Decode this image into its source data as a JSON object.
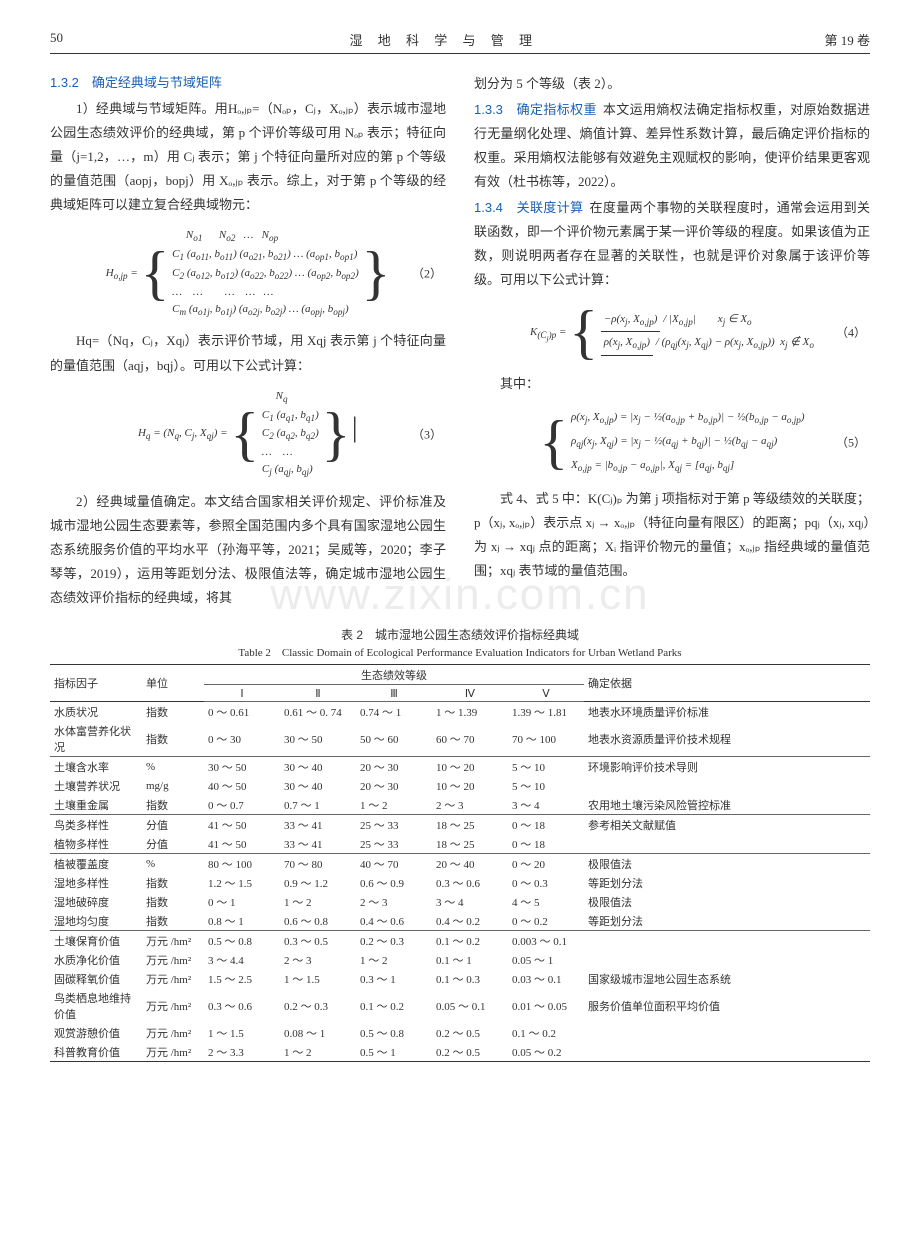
{
  "header": {
    "page": "50",
    "journal": "湿 地 科 学 与 管 理",
    "volume": "第 19 卷"
  },
  "watermark": "www.zixin.com.cn",
  "left": {
    "h132": "1.3.2　确定经典域与节域矩阵",
    "p1": "1）经典域与节域矩阵。用Hₒ,ⱼₚ=（Nₒₚ，Cⱼ，Xₒ,ⱼₚ）表示城市湿地公园生态绩效评价的经典域，第 p 个评价等级可用 Nₒₚ 表示；特征向量（j=1,2，…，m）用 Cⱼ 表示；第 j 个特征向量所对应的第 p 个等级的量值范围（aopj，bopj）用 Xₒ,ⱼₚ 表示。综上，对于第 p 个等级的经典域矩阵可以建立复合经典域物元：",
    "formula2_num": "（2）",
    "p2": "Hq=（Nq，Cⱼ，Xqⱼ）表示评价节域，用 Xqj 表示第 j 个特征向量的量值范围（aqj，bqj）。可用以下公式计算：",
    "formula3_num": "（3）",
    "p3": "2）经典域量值确定。本文结合国家相关评价规定、评价标准及城市湿地公园生态要素等，参照全国范围内多个具有国家湿地公园生态系统服务价值的平均水平（孙海平等，2021；吴威等，2020；李子琴等，2019），运用等距划分法、极限值法等，确定城市湿地公园生态绩效评价指标的经典域，将其"
  },
  "right": {
    "p0": "划分为 5 个等级（表 2）。",
    "h133": "1.3.3　确定指标权重",
    "p1": "本文运用熵权法确定指标权重，对原始数据进行无量纲化处理、熵值计算、差异性系数计算，最后确定评价指标的权重。采用熵权法能够有效避免主观赋权的影响，使评价结果更客观有效（杜书栋等，2022）。",
    "h134": "1.3.4　关联度计算",
    "p2": "在度量两个事物的关联程度时，通常会运用到关联函数，即一个评价物元素属于某一评价等级的程度。如果该值为正数，则说明两者存在显著的关联性，也就是评价对象属于该评价等级。可用以下公式计算：",
    "formula4_num": "（4）",
    "p3_label": "其中：",
    "formula5_num": "（5）",
    "p4": "式 4、式 5 中：K(Cⱼ)ₚ 为第 j 项指标对于第 p 等级绩效的关联度；p（xⱼ, xₒ,ⱼₚ）表示点 xⱼ → xₒ,ⱼₚ（特征向量有限区）的距离；pqⱼ（xⱼ, xqⱼ）为 xⱼ → xqⱼ 点的距离；Xᵢ 指评价物元的量值；xₒ,ⱼₚ 指经典域的量值范围；xqⱼ 表节域的量值范围。"
  },
  "table": {
    "title": "表 2　城市湿地公园生态绩效评价指标经典域",
    "subtitle": "Table 2　Classic Domain of Ecological Performance Evaluation Indicators for Urban Wetland Parks",
    "head": {
      "c1": "指标因子",
      "c2": "单位",
      "group": "生态绩效等级",
      "c3": "确定依据",
      "levels": [
        "Ⅰ",
        "Ⅱ",
        "Ⅲ",
        "Ⅳ",
        "Ⅴ"
      ]
    },
    "rows": [
      {
        "f": "水质状况",
        "u": "指数",
        "v": [
          "0 ～ 0.61",
          "0.61 ～ 0. 74",
          "0.74 ～ 1",
          "1 ～ 1.39",
          "1.39 ～ 1.81"
        ],
        "b": "地表水环境质量评价标准"
      },
      {
        "f": "水体富营养化状况",
        "u": "指数",
        "v": [
          "0 ～ 30",
          "30 ～ 50",
          "50 ～ 60",
          "60 ～ 70",
          "70 ～ 100"
        ],
        "b": "地表水资源质量评价技术规程"
      },
      {
        "f": "土壤含水率",
        "u": "%",
        "v": [
          "30 ～ 50",
          "30 ～ 40",
          "20 ～ 30",
          "10 ～ 20",
          "5 ～ 10"
        ],
        "b": "环境影响评价技术导则"
      },
      {
        "f": "土壤营养状况",
        "u": "mg/g",
        "v": [
          "40 ～ 50",
          "30 ～ 40",
          "20 ～ 30",
          "10 ～ 20",
          "5 ～ 10"
        ],
        "b": ""
      },
      {
        "f": "土壤重金属",
        "u": "指数",
        "v": [
          "0 ～ 0.7",
          "0.7 ～ 1",
          "1 ～ 2",
          "2 ～ 3",
          "3 ～ 4"
        ],
        "b": "农用地土壤污染风险管控标准"
      },
      {
        "f": "鸟类多样性",
        "u": "分值",
        "v": [
          "41 ～ 50",
          "33 ～ 41",
          "25 ～ 33",
          "18 ～ 25",
          "0 ～ 18"
        ],
        "b": "参考相关文献赋值"
      },
      {
        "f": "植物多样性",
        "u": "分值",
        "v": [
          "41 ～ 50",
          "33 ～ 41",
          "25 ～ 33",
          "18 ～ 25",
          "0 ～ 18"
        ],
        "b": ""
      },
      {
        "f": "植被覆盖度",
        "u": "%",
        "v": [
          "80 ～ 100",
          "70 ～ 80",
          "40 ～ 70",
          "20 ～ 40",
          "0 ～ 20"
        ],
        "b": "极限值法"
      },
      {
        "f": "湿地多样性",
        "u": "指数",
        "v": [
          "1.2 ～ 1.5",
          "0.9 ～ 1.2",
          "0.6 ～ 0.9",
          "0.3 ～ 0.6",
          "0 ～ 0.3"
        ],
        "b": "等距划分法"
      },
      {
        "f": "湿地破碎度",
        "u": "指数",
        "v": [
          "0 ～ 1",
          "1 ～ 2",
          "2 ～ 3",
          "3 ～ 4",
          "4 ～ 5"
        ],
        "b": "极限值法"
      },
      {
        "f": "湿地均匀度",
        "u": "指数",
        "v": [
          "0.8 ～ 1",
          "0.6 ～ 0.8",
          "0.4 ～ 0.6",
          "0.4 ～ 0.2",
          "0 ～ 0.2"
        ],
        "b": "等距划分法"
      },
      {
        "f": "土壤保育价值",
        "u": "万元 /hm²",
        "v": [
          "0.5 ～ 0.8",
          "0.3 ～ 0.5",
          "0.2 ～ 0.3",
          "0.1 ～ 0.2",
          "0.003 ～ 0.1"
        ],
        "b": ""
      },
      {
        "f": "水质净化价值",
        "u": "万元 /hm²",
        "v": [
          "3 ～ 4.4",
          "2 ～ 3",
          "1 ～ 2",
          "0.1 ～ 1",
          "0.05 ～ 1"
        ],
        "b": ""
      },
      {
        "f": "固碳释氧价值",
        "u": "万元 /hm²",
        "v": [
          "1.5 ～ 2.5",
          "1 ～ 1.5",
          "0.3 ～ 1",
          "0.1 ～ 0.3",
          "0.03 ～ 0.1"
        ],
        "b": "国家级城市湿地公园生态系统"
      },
      {
        "f": "鸟类栖息地维持价值",
        "u": "万元 /hm²",
        "v": [
          "0.3 ～ 0.6",
          "0.2 ～ 0.3",
          "0.1 ～ 0.2",
          "0.05 ～ 0.1",
          "0.01 ～ 0.05"
        ],
        "b": "服务价值单位面积平均价值"
      },
      {
        "f": "观赏游憩价值",
        "u": "万元 /hm²",
        "v": [
          "1 ～ 1.5",
          "0.08 ～ 1",
          "0.5 ～ 0.8",
          "0.2 ～ 0.5",
          "0.1 ～ 0.2"
        ],
        "b": ""
      },
      {
        "f": "科普教育价值",
        "u": "万元 /hm²",
        "v": [
          "2 ～ 3.3",
          "1 ～ 2",
          "0.5 ～ 1",
          "0.2 ～ 0.5",
          "0.05 ～ 0.2"
        ],
        "b": ""
      }
    ]
  }
}
